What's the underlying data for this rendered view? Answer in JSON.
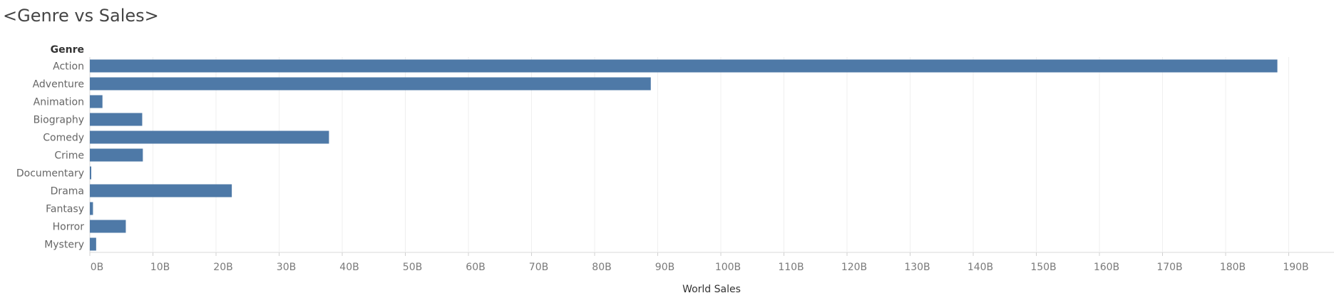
{
  "chart_data": {
    "type": "bar",
    "orientation": "horizontal",
    "title": "<Genre vs Sales>",
    "category_header": "Genre",
    "xlabel": "World Sales",
    "categories": [
      "Action",
      "Adventure",
      "Animation",
      "Biography",
      "Comedy",
      "Crime",
      "Documentary",
      "Drama",
      "Fantasy",
      "Horror",
      "Mystery"
    ],
    "values": [
      188.2,
      88.9,
      2.0,
      8.3,
      37.9,
      8.4,
      0.2,
      22.5,
      0.5,
      5.7,
      1.0
    ],
    "value_unit": "B",
    "xlim": [
      0,
      197
    ],
    "xticks": [
      0,
      10,
      20,
      30,
      40,
      50,
      60,
      70,
      80,
      90,
      100,
      110,
      120,
      130,
      140,
      150,
      160,
      170,
      180,
      190
    ],
    "xtick_labels": [
      "0B",
      "10B",
      "20B",
      "30B",
      "40B",
      "50B",
      "60B",
      "70B",
      "80B",
      "90B",
      "100B",
      "110B",
      "120B",
      "130B",
      "140B",
      "150B",
      "160B",
      "170B",
      "180B",
      "190B"
    ],
    "grid": "vertical",
    "bar_color": "#4e79a7"
  }
}
